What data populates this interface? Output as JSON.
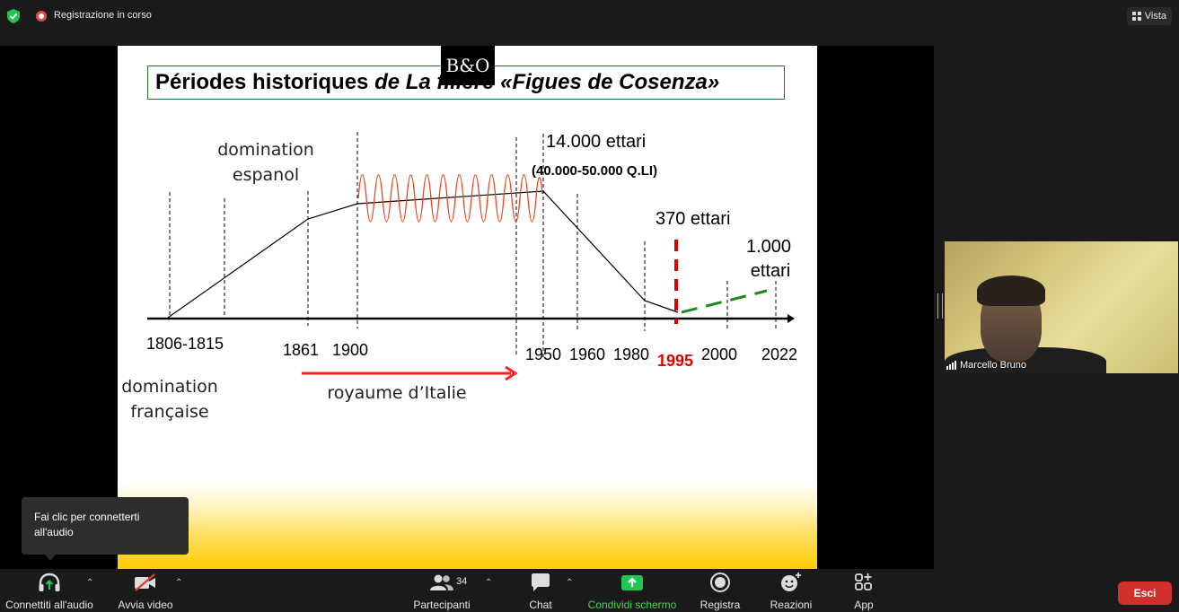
{
  "topbar": {
    "recording_label": "Registrazione in corso",
    "view_label": "Vista"
  },
  "slide": {
    "logo_text": "B&O",
    "title_part1": "Périodes historiques ",
    "title_part2": "de La filière «Figues de Cosenza»",
    "labels": {
      "domination_espanol_1": "domination",
      "domination_espanol_2": "espanol",
      "hectares_14000": "14.000 ettari",
      "quintals": "(40.000-50.000 Q.LI)",
      "hectares_370": "370 ettari",
      "hectares_1000_1": "1.000",
      "hectares_1000_2": "ettari",
      "domination_francaise_1": "domination",
      "domination_francaise_2": "française",
      "royaume": "royaume d’Italie"
    },
    "years": [
      "1806-1815",
      "1861",
      "1900",
      "1950",
      "1960",
      "1980",
      "1995",
      "2000",
      "2022"
    ],
    "colors": {
      "title_border": "#1f7a2a",
      "wave": "#f04020",
      "arrow": "#ff2020",
      "dashed_red": "#e00000",
      "dashed_green": "#1a8a1a",
      "year_1995": "#e00000"
    }
  },
  "participant": {
    "name": "Marcello Bruno"
  },
  "tooltip": {
    "text": "Fai clic per connetterti all'audio"
  },
  "toolbar": {
    "audio_label": "Connettiti all'audio",
    "video_label": "Avvia video",
    "participants_label": "Partecipanti",
    "participants_count": "34",
    "chat_label": "Chat",
    "share_label": "Condividi schermo",
    "record_label": "Registra",
    "reactions_label": "Reazioni",
    "apps_label": "App",
    "leave_label": "Esci"
  }
}
